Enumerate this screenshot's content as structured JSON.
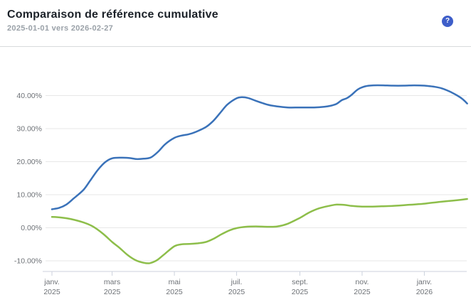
{
  "header": {
    "title": "Comparaison de référence cumulative",
    "subtitle": "2025-01-01 vers 2026-02-27",
    "help_icon": "?"
  },
  "colors": {
    "series_blue": "#3a72b9",
    "series_green": "#8dbe4a",
    "help_badge_bg": "#3e5ec9",
    "help_badge_fg": "#ffffff",
    "grid": "#e7e7e7",
    "axis": "#ccd2dd",
    "tick_label": "#6d7176",
    "title_text": "#1b2128",
    "subtitle_text": "#9aa1a8",
    "divider": "#d8dadc"
  },
  "chart_data": {
    "type": "line",
    "title": "Comparaison de référence cumulative",
    "xlabel": "",
    "ylabel": "",
    "grid": "horizontal",
    "legend": "none",
    "ylim": [
      -13,
      48
    ],
    "x_range": [
      "2025-01-01",
      "2026-02-27"
    ],
    "y_ticks": [
      40,
      30,
      20,
      10,
      0,
      -10
    ],
    "y_tick_labels": [
      "40.00%",
      "30.00%",
      "20.00%",
      "10.00%",
      "0.00%",
      "-10.00%"
    ],
    "x_ticks": [
      "2025-01-01",
      "2025-03-01",
      "2025-05-01",
      "2025-07-01",
      "2025-09-01",
      "2025-11-01",
      "2026-01-01"
    ],
    "x_tick_labels": [
      {
        "line1": "janv.",
        "line2": "2025"
      },
      {
        "line1": "mars",
        "line2": "2025"
      },
      {
        "line1": "mai",
        "line2": "2025"
      },
      {
        "line1": "juil.",
        "line2": "2025"
      },
      {
        "line1": "sept.",
        "line2": "2025"
      },
      {
        "line1": "nov.",
        "line2": "2025"
      },
      {
        "line1": "janv.",
        "line2": "2026"
      }
    ],
    "series": [
      {
        "name": "series_blue",
        "color": "#3a72b9",
        "unit": "%",
        "points": [
          [
            "2025-01-01",
            5.6
          ],
          [
            "2025-01-08",
            6.0
          ],
          [
            "2025-01-15",
            7.0
          ],
          [
            "2025-01-22",
            8.8
          ],
          [
            "2025-02-01",
            11.5
          ],
          [
            "2025-02-08",
            14.5
          ],
          [
            "2025-02-15",
            17.5
          ],
          [
            "2025-02-22",
            19.8
          ],
          [
            "2025-03-01",
            21.0
          ],
          [
            "2025-03-10",
            21.2
          ],
          [
            "2025-03-18",
            21.1
          ],
          [
            "2025-03-25",
            20.8
          ],
          [
            "2025-04-01",
            20.9
          ],
          [
            "2025-04-08",
            21.3
          ],
          [
            "2025-04-15",
            23.0
          ],
          [
            "2025-04-22",
            25.3
          ],
          [
            "2025-05-01",
            27.2
          ],
          [
            "2025-05-08",
            27.9
          ],
          [
            "2025-05-15",
            28.3
          ],
          [
            "2025-05-22",
            29.0
          ],
          [
            "2025-06-01",
            30.5
          ],
          [
            "2025-06-08",
            32.3
          ],
          [
            "2025-06-15",
            34.8
          ],
          [
            "2025-06-22",
            37.3
          ],
          [
            "2025-07-01",
            39.2
          ],
          [
            "2025-07-06",
            39.5
          ],
          [
            "2025-07-12",
            39.3
          ],
          [
            "2025-07-20",
            38.4
          ],
          [
            "2025-08-01",
            37.2
          ],
          [
            "2025-08-10",
            36.7
          ],
          [
            "2025-08-20",
            36.4
          ],
          [
            "2025-09-01",
            36.4
          ],
          [
            "2025-09-15",
            36.4
          ],
          [
            "2025-09-25",
            36.6
          ],
          [
            "2025-10-01",
            36.9
          ],
          [
            "2025-10-07",
            37.5
          ],
          [
            "2025-10-12",
            38.6
          ],
          [
            "2025-10-17",
            39.2
          ],
          [
            "2025-10-22",
            40.3
          ],
          [
            "2025-10-28",
            41.9
          ],
          [
            "2025-11-04",
            42.8
          ],
          [
            "2025-11-12",
            43.1
          ],
          [
            "2025-11-22",
            43.1
          ],
          [
            "2025-12-01",
            43.0
          ],
          [
            "2025-12-12",
            43.0
          ],
          [
            "2025-12-22",
            43.1
          ],
          [
            "2026-01-01",
            43.0
          ],
          [
            "2026-01-10",
            42.7
          ],
          [
            "2026-01-18",
            42.2
          ],
          [
            "2026-01-26",
            41.2
          ],
          [
            "2026-02-03",
            39.9
          ],
          [
            "2026-02-08",
            38.8
          ],
          [
            "2026-02-12",
            37.6
          ]
        ]
      },
      {
        "name": "series_green",
        "color": "#8dbe4a",
        "unit": "%",
        "points": [
          [
            "2025-01-01",
            3.3
          ],
          [
            "2025-01-10",
            3.1
          ],
          [
            "2025-01-20",
            2.6
          ],
          [
            "2025-02-01",
            1.6
          ],
          [
            "2025-02-10",
            0.4
          ],
          [
            "2025-02-20",
            -1.8
          ],
          [
            "2025-03-01",
            -4.3
          ],
          [
            "2025-03-08",
            -6.0
          ],
          [
            "2025-03-16",
            -8.2
          ],
          [
            "2025-03-24",
            -9.8
          ],
          [
            "2025-04-01",
            -10.6
          ],
          [
            "2025-04-07",
            -10.7
          ],
          [
            "2025-04-14",
            -9.8
          ],
          [
            "2025-04-22",
            -7.8
          ],
          [
            "2025-05-01",
            -5.6
          ],
          [
            "2025-05-08",
            -5.0
          ],
          [
            "2025-05-16",
            -4.9
          ],
          [
            "2025-05-24",
            -4.7
          ],
          [
            "2025-06-01",
            -4.3
          ],
          [
            "2025-06-08",
            -3.4
          ],
          [
            "2025-06-16",
            -2.0
          ],
          [
            "2025-06-24",
            -0.8
          ],
          [
            "2025-07-01",
            -0.1
          ],
          [
            "2025-07-10",
            0.3
          ],
          [
            "2025-07-20",
            0.4
          ],
          [
            "2025-08-01",
            0.3
          ],
          [
            "2025-08-10",
            0.4
          ],
          [
            "2025-08-20",
            1.2
          ],
          [
            "2025-09-01",
            3.0
          ],
          [
            "2025-09-10",
            4.6
          ],
          [
            "2025-09-20",
            5.9
          ],
          [
            "2025-10-01",
            6.7
          ],
          [
            "2025-10-07",
            7.0
          ],
          [
            "2025-10-15",
            6.9
          ],
          [
            "2025-10-22",
            6.6
          ],
          [
            "2025-11-01",
            6.4
          ],
          [
            "2025-11-10",
            6.4
          ],
          [
            "2025-11-20",
            6.5
          ],
          [
            "2025-12-01",
            6.6
          ],
          [
            "2025-12-15",
            6.9
          ],
          [
            "2026-01-01",
            7.3
          ],
          [
            "2026-01-15",
            7.8
          ],
          [
            "2026-02-01",
            8.3
          ],
          [
            "2026-02-12",
            8.7
          ]
        ]
      }
    ]
  }
}
